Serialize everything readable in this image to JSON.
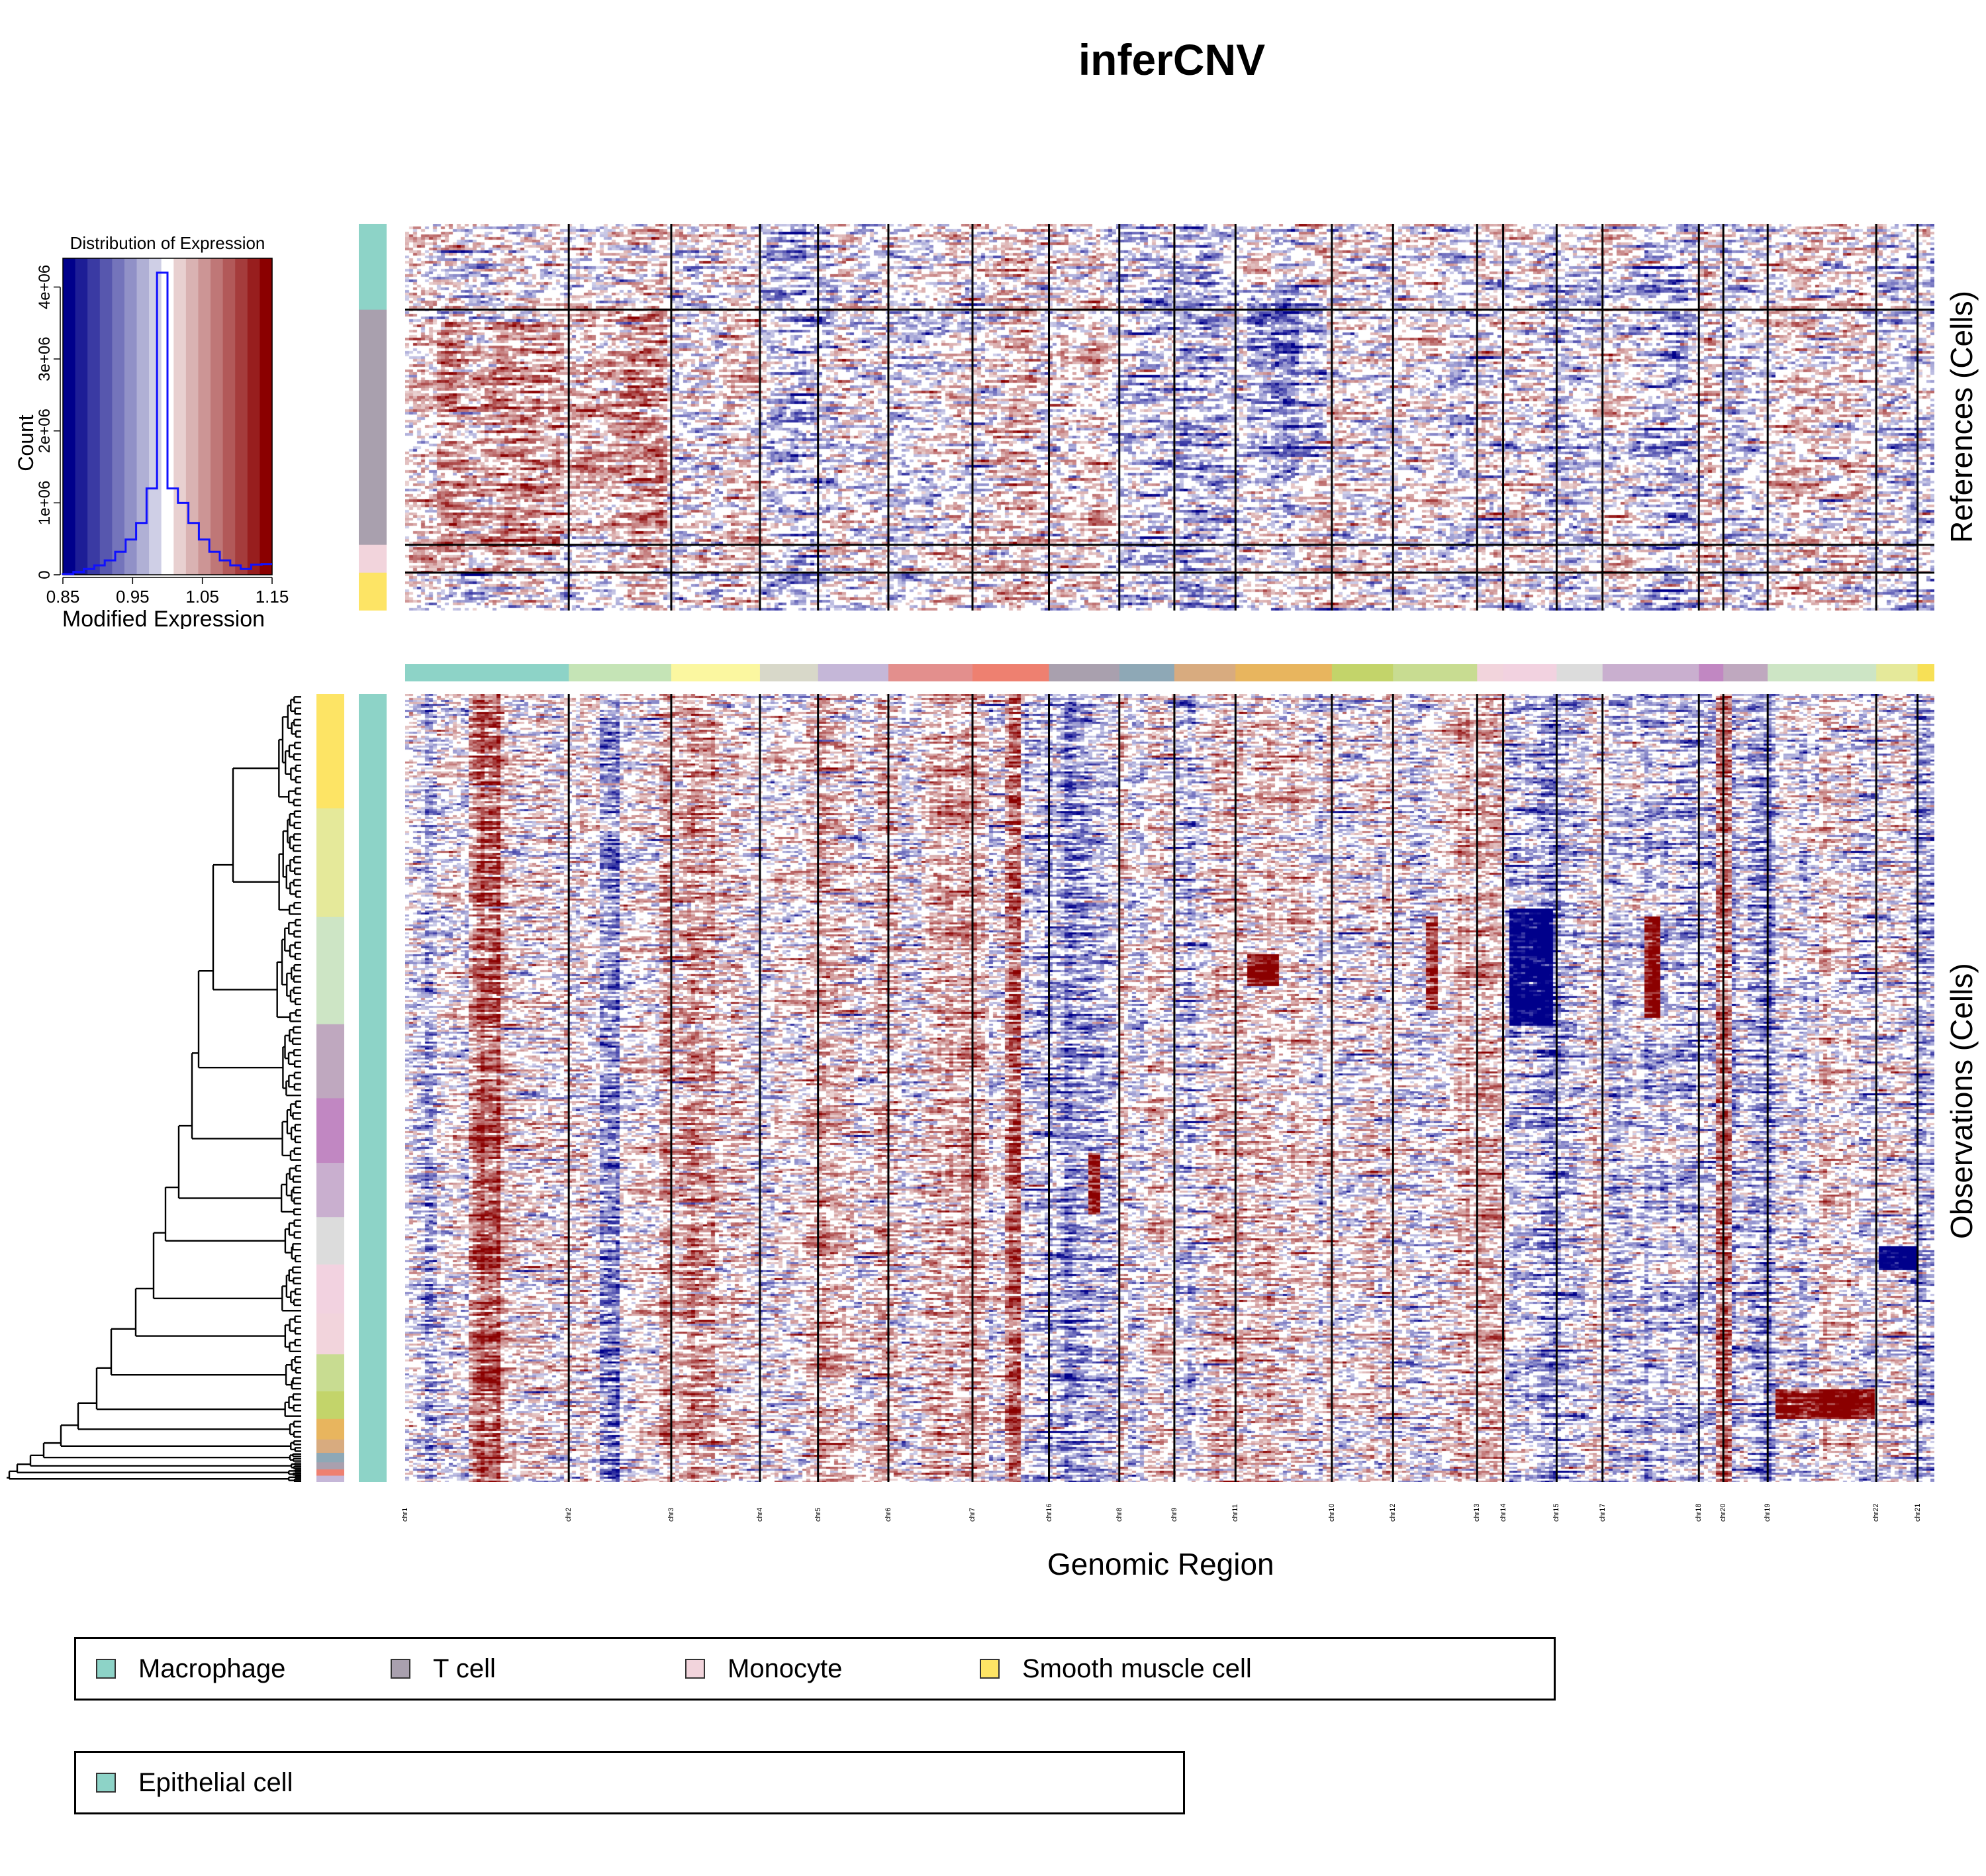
{
  "title": "inferCNV",
  "chart_data": {
    "type": "heatmap",
    "title": "inferCNV",
    "xlabel": "Genomic Region",
    "reference_label": "References (Cells)",
    "observation_label": "Observations (Cells)",
    "color_scale": {
      "low": "#00008b",
      "mid": "#ffffff",
      "high": "#8b0000",
      "range": [
        0.85,
        1.15
      ]
    },
    "chromosomes": [
      {
        "name": "chr1",
        "start": 0,
        "end": 0.107,
        "color": "#8dd3c7"
      },
      {
        "name": "chr2",
        "start": 0.107,
        "end": 0.174,
        "color": "#c5e4b6"
      },
      {
        "name": "chr3",
        "start": 0.174,
        "end": 0.232,
        "color": "#fbf7a0"
      },
      {
        "name": "chr4",
        "start": 0.232,
        "end": 0.27,
        "color": "#d8d8c9"
      },
      {
        "name": "chr5",
        "start": 0.27,
        "end": 0.316,
        "color": "#c5b7d8"
      },
      {
        "name": "chr6",
        "start": 0.316,
        "end": 0.371,
        "color": "#e38f8d"
      },
      {
        "name": "chr7",
        "start": 0.371,
        "end": 0.421,
        "color": "#ee8070"
      },
      {
        "name": "chr16",
        "start": 0.421,
        "end": 0.467,
        "color": "#a9a0ae"
      },
      {
        "name": "chr8",
        "start": 0.467,
        "end": 0.503,
        "color": "#8ea8b6"
      },
      {
        "name": "chr9",
        "start": 0.503,
        "end": 0.543,
        "color": "#d8ab7f"
      },
      {
        "name": "chr11",
        "start": 0.543,
        "end": 0.606,
        "color": "#e8b55e"
      },
      {
        "name": "chr10",
        "start": 0.606,
        "end": 0.646,
        "color": "#c3d46a"
      },
      {
        "name": "chr12",
        "start": 0.646,
        "end": 0.701,
        "color": "#c8dc91"
      },
      {
        "name": "chr13",
        "start": 0.701,
        "end": 0.718,
        "color": "#f2d4dc"
      },
      {
        "name": "chr14",
        "start": 0.718,
        "end": 0.753,
        "color": "#f2d2e0"
      },
      {
        "name": "chr15",
        "start": 0.753,
        "end": 0.783,
        "color": "#dcdcdc"
      },
      {
        "name": "chr17",
        "start": 0.783,
        "end": 0.846,
        "color": "#c9afcf"
      },
      {
        "name": "chr18",
        "start": 0.846,
        "end": 0.862,
        "color": "#c187c2"
      },
      {
        "name": "chr20",
        "start": 0.862,
        "end": 0.891,
        "color": "#bfa8bf"
      },
      {
        "name": "chr19",
        "start": 0.891,
        "end": 0.962,
        "color": "#cde5c5"
      },
      {
        "name": "chr22",
        "start": 0.962,
        "end": 0.989,
        "color": "#e5e99a"
      },
      {
        "name": "chr21",
        "start": 0.989,
        "end": 1.0,
        "color": "#f7e056"
      }
    ],
    "reference_groups": [
      {
        "name": "Macrophage",
        "fraction": 0.222,
        "color": "#8dd3c7"
      },
      {
        "name": "T cell",
        "fraction": 0.608,
        "color": "#a9a0ae"
      },
      {
        "name": "Monocyte",
        "fraction": 0.072,
        "color": "#f2d4dc"
      },
      {
        "name": "Smooth muscle cell",
        "fraction": 0.098,
        "color": "#fde465"
      }
    ],
    "observation_groups": [
      {
        "name": "Epithelial cell",
        "fraction": 1.0,
        "color": "#8dd3c7"
      }
    ],
    "observation_subclusters": [
      {
        "fraction": 0.145,
        "color": "#fde465"
      },
      {
        "fraction": 0.138,
        "color": "#e5e99a"
      },
      {
        "fraction": 0.136,
        "color": "#cde5c5"
      },
      {
        "fraction": 0.094,
        "color": "#bfa8bf"
      },
      {
        "fraction": 0.082,
        "color": "#c187c2"
      },
      {
        "fraction": 0.069,
        "color": "#c9afcf"
      },
      {
        "fraction": 0.06,
        "color": "#dcdcdc"
      },
      {
        "fraction": 0.062,
        "color": "#f2d2e0"
      },
      {
        "fraction": 0.052,
        "color": "#f2d4dc"
      },
      {
        "fraction": 0.047,
        "color": "#c8dc91"
      },
      {
        "fraction": 0.035,
        "color": "#c3d46a"
      },
      {
        "fraction": 0.026,
        "color": "#e8b55e"
      },
      {
        "fraction": 0.017,
        "color": "#d8ab7f"
      },
      {
        "fraction": 0.012,
        "color": "#8ea8b6"
      },
      {
        "fraction": 0.009,
        "color": "#a9a0ae"
      },
      {
        "fraction": 0.008,
        "color": "#ee8070"
      },
      {
        "fraction": 0.008,
        "color": "#c5b7d8"
      }
    ],
    "histogram": {
      "title": "Distribution of Expression",
      "xlabel": "Modified Expression",
      "ylabel": "Count",
      "xlim": [
        0.85,
        1.15
      ],
      "ylim": [
        0,
        4400000
      ],
      "x_ticks": [
        "0.85",
        "0.95",
        "1.05",
        "1.15"
      ],
      "x_tick_values": [
        0.85,
        0.95,
        1.05,
        1.15
      ],
      "y_ticks": [
        "0",
        "1e+06",
        "2e+06",
        "3e+06",
        "4e+06"
      ],
      "y_tick_values": [
        0,
        1000000,
        2000000,
        3000000,
        4000000
      ],
      "bin_edges": [
        0.85,
        0.865,
        0.88,
        0.895,
        0.91,
        0.925,
        0.94,
        0.955,
        0.97,
        0.985,
        1.0,
        1.015,
        1.03,
        1.045,
        1.06,
        1.075,
        1.09,
        1.105,
        1.12,
        1.135,
        1.15
      ],
      "counts": [
        10000,
        40000,
        80000,
        130000,
        200000,
        320000,
        490000,
        720000,
        1200000,
        4200000,
        1200000,
        1000000,
        720000,
        490000,
        320000,
        200000,
        130000,
        80000,
        140000,
        150000
      ],
      "colorbar": [
        "#00008b",
        "#1d1d96",
        "#3a3aa3",
        "#5757ae",
        "#7474bb",
        "#9191c7",
        "#b0b0d5",
        "#cfcfe6",
        "#ffffff",
        "#e8d0d0",
        "#d9b2b2",
        "#cc9595",
        "#bf7777",
        "#b25959",
        "#a53c3c",
        "#981e1e",
        "#8b0000"
      ]
    }
  },
  "legend_rows": [
    [
      {
        "label": "Macrophage",
        "color": "#8dd3c7"
      },
      {
        "label": "T cell",
        "color": "#a9a0ae"
      },
      {
        "label": "Monocyte",
        "color": "#f2d4dc"
      },
      {
        "label": "Smooth muscle cell",
        "color": "#fde465"
      }
    ],
    [
      {
        "label": "Epithelial cell",
        "color": "#8dd3c7"
      }
    ]
  ]
}
